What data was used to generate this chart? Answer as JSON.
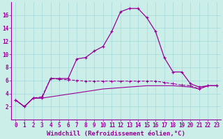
{
  "xlabel": "Windchill (Refroidissement éolien,°C)",
  "background_color": "#cceee8",
  "grid_color": "#aadddd",
  "line_color": "#990099",
  "x_values": [
    0,
    1,
    2,
    3,
    4,
    5,
    6,
    7,
    8,
    9,
    10,
    11,
    12,
    13,
    14,
    15,
    16,
    17,
    18,
    19,
    20,
    21,
    22,
    23
  ],
  "line1_y": [
    3.0,
    2.0,
    3.3,
    3.3,
    6.3,
    6.3,
    6.3,
    9.3,
    9.5,
    10.5,
    11.2,
    13.5,
    16.5,
    17.0,
    17.0,
    15.6,
    13.5,
    9.5,
    7.3,
    7.3,
    5.5,
    5.0,
    5.2,
    5.2
  ],
  "line2_y": [
    3.0,
    2.0,
    3.3,
    3.5,
    6.3,
    6.2,
    6.1,
    6.0,
    5.9,
    5.9,
    5.9,
    5.9,
    5.9,
    5.9,
    5.9,
    5.9,
    5.9,
    5.7,
    5.5,
    5.3,
    5.2,
    4.7,
    5.2,
    5.2
  ],
  "line3_y": [
    3.0,
    2.0,
    3.3,
    3.3,
    3.5,
    3.7,
    3.9,
    4.1,
    4.3,
    4.5,
    4.7,
    4.8,
    4.9,
    5.0,
    5.1,
    5.2,
    5.2,
    5.2,
    5.2,
    5.1,
    5.0,
    4.7,
    5.2,
    5.2
  ],
  "ylim": [
    0,
    18
  ],
  "xlim_min": -0.5,
  "xlim_max": 23.5,
  "yticks": [
    2,
    4,
    6,
    8,
    10,
    12,
    14,
    16
  ],
  "xticks": [
    0,
    1,
    2,
    3,
    4,
    5,
    6,
    7,
    8,
    9,
    10,
    11,
    12,
    13,
    14,
    15,
    16,
    17,
    18,
    19,
    20,
    21,
    22,
    23
  ],
  "xtick_labels": [
    "0",
    "1",
    "2",
    "3",
    "4",
    "5",
    "6",
    "7",
    "8",
    "9",
    "10",
    "11",
    "12",
    "13",
    "14",
    "15",
    "16",
    "17",
    "18",
    "19",
    "20",
    "21",
    "22",
    "23"
  ],
  "tick_fontsize": 5.5,
  "xlabel_fontsize": 6.5
}
